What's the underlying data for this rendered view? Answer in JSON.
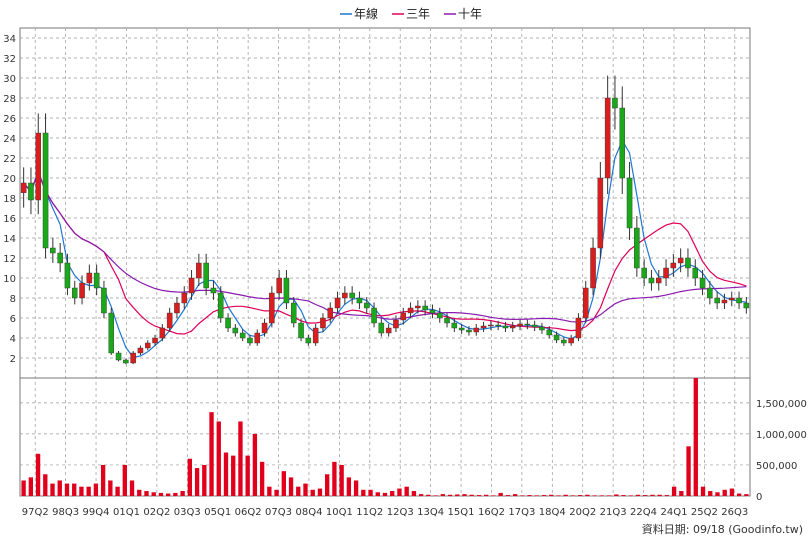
{
  "chart_data": [
    {
      "type": "candlestick",
      "legend": [
        {
          "name": "年線",
          "color": "#1f77d4"
        },
        {
          "name": "三年",
          "color": "#e0005a"
        },
        {
          "name": "十年",
          "color": "#8b1ab0"
        }
      ],
      "legend_position": "top-center",
      "x_ticks": [
        "97Q2",
        "98Q3",
        "99Q4",
        "01Q1",
        "02Q2",
        "03Q3",
        "05Q1",
        "06Q2",
        "07Q3",
        "08Q4",
        "10Q1",
        "11Q2",
        "12Q3",
        "13Q4",
        "15Q1",
        "16Q2",
        "17Q3",
        "18Q4",
        "20Q2",
        "21Q3",
        "22Q4",
        "24Q1",
        "25Q2",
        "26Q3"
      ],
      "ylim": [
        0,
        35
      ],
      "y_ticks": [
        2,
        4,
        6,
        8,
        10,
        12,
        14,
        16,
        18,
        20,
        22,
        24,
        26,
        28,
        30,
        32,
        34
      ],
      "y_axis_side": "left",
      "grid": true,
      "close": [
        19.5,
        17.8,
        24.5,
        13,
        12.5,
        11.5,
        9,
        8,
        9.5,
        10.5,
        9,
        6.5,
        2.5,
        1.8,
        1.5,
        2.5,
        3,
        3.5,
        4,
        5,
        6.5,
        7.5,
        8.5,
        10,
        11.5,
        9,
        8.5,
        6,
        5,
        4.5,
        4,
        3.5,
        4.5,
        5.5,
        8.5,
        10,
        7.5,
        5.5,
        4,
        3.5,
        5,
        6,
        7,
        8,
        8.5,
        8,
        7.5,
        7,
        5.5,
        4.5,
        5,
        5.8,
        6.5,
        7,
        7.2,
        6.8,
        6.5,
        6,
        5.5,
        5,
        4.8,
        4.6,
        5,
        5.2,
        5.3,
        5.2,
        5,
        5.2,
        5.4,
        5.3,
        5.1,
        4.8,
        4.3,
        3.8,
        3.5,
        4,
        6,
        9,
        13,
        20,
        28,
        27,
        20,
        15,
        11,
        10,
        9.5,
        10,
        11,
        11.5,
        12,
        11,
        10,
        9,
        8,
        7.5,
        7.8,
        8,
        7.5,
        7
      ]
    },
    {
      "type": "bar",
      "x_ticks": [
        "97Q2",
        "98Q3",
        "99Q4",
        "01Q1",
        "02Q2",
        "03Q3",
        "05Q1",
        "06Q2",
        "07Q3",
        "08Q4",
        "10Q1",
        "11Q2",
        "12Q3",
        "13Q4",
        "15Q1",
        "16Q2",
        "17Q3",
        "18Q4",
        "20Q2",
        "21Q3",
        "22Q4",
        "24Q1",
        "25Q2",
        "26Q3"
      ],
      "ylim": [
        0,
        1900000
      ],
      "y_ticks": [
        "0",
        "500,000",
        "1,000,000",
        "1,500,000"
      ],
      "y_axis_side": "right",
      "color": "#e0001c",
      "values": [
        250000,
        300000,
        680000,
        350000,
        200000,
        250000,
        200000,
        200000,
        150000,
        150000,
        200000,
        500000,
        250000,
        150000,
        500000,
        250000,
        100000,
        80000,
        60000,
        50000,
        40000,
        50000,
        80000,
        600000,
        450000,
        500000,
        1350000,
        1200000,
        700000,
        650000,
        1200000,
        650000,
        1000000,
        550000,
        150000,
        100000,
        400000,
        300000,
        150000,
        200000,
        100000,
        120000,
        350000,
        550000,
        500000,
        300000,
        250000,
        100000,
        100000,
        60000,
        50000,
        80000,
        120000,
        150000,
        80000,
        30000,
        20000,
        10000,
        30000,
        20000,
        25000,
        30000,
        20000,
        15000,
        20000,
        10000,
        50000,
        15000,
        30000,
        10000,
        15000,
        10000,
        15000,
        20000,
        10000,
        20000,
        10000,
        15000,
        20000,
        10000,
        10000,
        10000,
        25000,
        15000,
        10000,
        20000,
        15000,
        20000,
        20000,
        15000,
        150000,
        80000,
        800000,
        1900000,
        150000,
        80000,
        60000,
        100000,
        120000,
        40000,
        30000
      ]
    }
  ],
  "source_note": "資料日期: 09/18 (Goodinfo.tw)"
}
